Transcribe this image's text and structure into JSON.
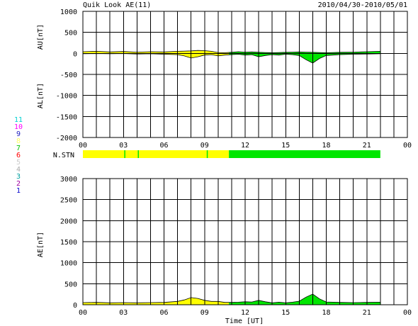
{
  "header": {
    "title": "Quik Look AE(11)",
    "date_range": "2010/04/30-2010/05/01"
  },
  "colors": {
    "yellow": "#ffff00",
    "green": "#00e600",
    "grid": "#000000"
  },
  "station_legend": [
    {
      "label": "11",
      "color": "#00d0d0"
    },
    {
      "label": "10",
      "color": "#ff00ff"
    },
    {
      "label": "9",
      "color": "#2020c0"
    },
    {
      "label": "8",
      "color": "#ffff66"
    },
    {
      "label": "7",
      "color": "#00c000"
    },
    {
      "label": "6",
      "color": "#ff0000"
    },
    {
      "label": "5",
      "color": "#cccccc"
    },
    {
      "label": "4",
      "color": "#aaaaaa"
    },
    {
      "label": "3",
      "color": "#00a0a0"
    },
    {
      "label": "2",
      "color": "#a000a0"
    },
    {
      "label": "1",
      "color": "#0000cc"
    }
  ],
  "nstn_label": "N.STN",
  "chart_data": [
    {
      "type": "area",
      "ylabel_upper": "AU[nT]",
      "ylabel_lower": "AL[nT]",
      "ylim": [
        -2000,
        1000
      ],
      "yticks": [
        1000,
        500,
        0,
        -500,
        -1000,
        -1500,
        -2000
      ],
      "xlim": [
        0,
        24
      ],
      "xticks": [
        "00",
        "03",
        "06",
        "09",
        "12",
        "15",
        "18",
        "21",
        "00"
      ],
      "grid": true,
      "x_hours": [
        0,
        1,
        2,
        3,
        4,
        5,
        6,
        7,
        7.5,
        8,
        8.5,
        9,
        9.5,
        10,
        10.5,
        11,
        11.5,
        12,
        12.5,
        13,
        13.5,
        14,
        14.5,
        15,
        15.5,
        16,
        16.5,
        17,
        17.5,
        18,
        18.5,
        19,
        20,
        21,
        22
      ],
      "au": [
        40,
        50,
        35,
        45,
        30,
        40,
        35,
        50,
        55,
        60,
        70,
        65,
        50,
        20,
        15,
        25,
        40,
        30,
        35,
        25,
        20,
        15,
        20,
        25,
        30,
        35,
        30,
        25,
        20,
        15,
        20,
        25,
        30,
        40,
        50
      ],
      "al": [
        -10,
        -5,
        -10,
        -5,
        -15,
        -10,
        -20,
        -30,
        -60,
        -110,
        -80,
        -40,
        -30,
        -60,
        -40,
        -30,
        -20,
        -40,
        -30,
        -80,
        -50,
        -30,
        -40,
        -20,
        -30,
        -50,
        -150,
        -230,
        -120,
        -50,
        -40,
        -30,
        -20,
        -15,
        -10
      ],
      "segments": [
        {
          "from": 0,
          "to": 10.8,
          "color": "yellow"
        },
        {
          "from": 10.8,
          "to": 22,
          "color": "green"
        }
      ]
    },
    {
      "type": "area",
      "ylabel": "AE[nT]",
      "ylim": [
        0,
        3000
      ],
      "yticks": [
        3000,
        2500,
        2000,
        1500,
        1000,
        500,
        0
      ],
      "xlim": [
        0,
        24
      ],
      "xticks": [
        "00",
        "03",
        "06",
        "09",
        "12",
        "15",
        "18",
        "21",
        "00"
      ],
      "xlabel": "Time [UT]",
      "grid": true,
      "x_hours": [
        0,
        1,
        2,
        3,
        4,
        5,
        6,
        7,
        7.5,
        8,
        8.5,
        9,
        9.5,
        10,
        10.5,
        11,
        11.5,
        12,
        12.5,
        13,
        13.5,
        14,
        14.5,
        15,
        15.5,
        16,
        16.5,
        17,
        17.5,
        18,
        18.5,
        19,
        20,
        21,
        22
      ],
      "ae": [
        50,
        55,
        45,
        50,
        45,
        50,
        55,
        80,
        115,
        170,
        150,
        105,
        80,
        80,
        55,
        55,
        60,
        70,
        65,
        105,
        70,
        45,
        60,
        45,
        60,
        85,
        180,
        255,
        140,
        65,
        60,
        55,
        50,
        55,
        60
      ],
      "segments": [
        {
          "from": 0,
          "to": 10.8,
          "color": "yellow"
        },
        {
          "from": 10.8,
          "to": 22,
          "color": "green"
        }
      ]
    }
  ],
  "nstn_bar": {
    "segments": [
      {
        "from": 0,
        "to": 10.8,
        "color": "yellow"
      },
      {
        "from": 10.8,
        "to": 22,
        "color": "green"
      }
    ],
    "tick_hours": [
      3.1,
      4.1,
      9.2
    ]
  }
}
